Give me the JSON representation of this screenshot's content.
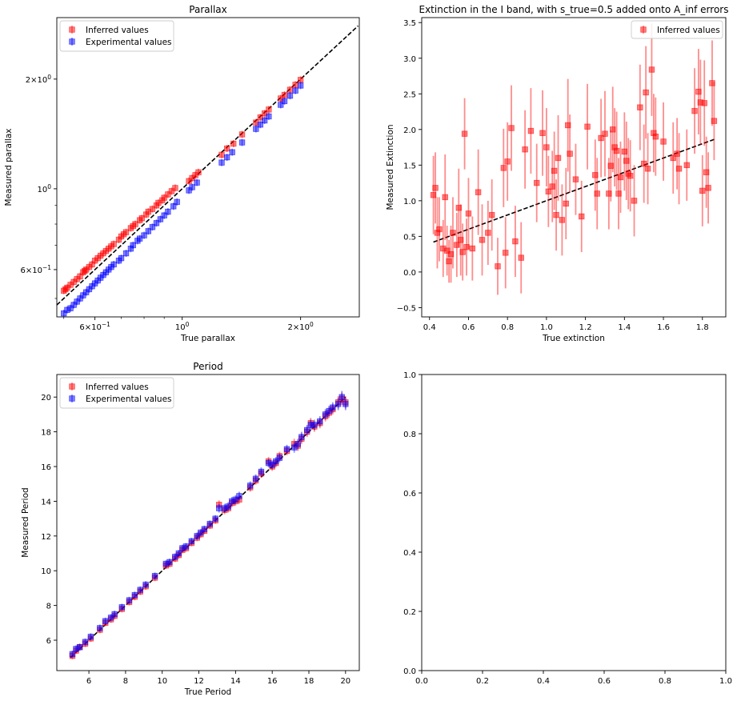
{
  "colors": {
    "inferred": "#ff0000",
    "experimental": "#0000ff",
    "fit": "#000000",
    "axes": "#000000"
  },
  "chart_data": [
    {
      "type": "scatter",
      "title": "Parallax",
      "xlabel": "True parallax",
      "ylabel": "Measured parallax",
      "xscale": "log",
      "yscale": "log",
      "xlim": [
        0.48,
        2.82
      ],
      "ylim": [
        0.445,
        2.95
      ],
      "xticks": [
        {
          "value": 0.6,
          "base": "6",
          "exp": "−1"
        },
        {
          "value": 1.0,
          "label": "10",
          "exp": "0"
        },
        {
          "value": 2.0,
          "base": "2",
          "exp": "0"
        }
      ],
      "yticks": [
        {
          "value": 0.6,
          "base": "6",
          "exp": "−1"
        },
        {
          "value": 1.0,
          "label": "10",
          "exp": "0"
        },
        {
          "value": 2.0,
          "base": "2",
          "exp": "0"
        }
      ],
      "legend": {
        "position": "upper-left",
        "entries": [
          "Inferred values",
          "Experimental values"
        ]
      },
      "reference_line": [
        [
          0.48,
          0.48
        ],
        [
          2.8,
          2.8
        ]
      ],
      "series": [
        {
          "name": "Inferred values",
          "color": "#ff0000",
          "x": [
            0.5,
            0.505,
            0.51,
            0.52,
            0.53,
            0.54,
            0.55,
            0.56,
            0.565,
            0.57,
            0.58,
            0.59,
            0.6,
            0.61,
            0.62,
            0.63,
            0.64,
            0.65,
            0.66,
            0.67,
            0.69,
            0.7,
            0.71,
            0.72,
            0.74,
            0.75,
            0.76,
            0.78,
            0.79,
            0.81,
            0.82,
            0.84,
            0.86,
            0.87,
            0.89,
            0.9,
            0.92,
            0.94,
            0.96,
            1.04,
            1.06,
            1.08,
            1.1,
            1.26,
            1.3,
            1.35,
            1.42,
            1.54,
            1.58,
            1.62,
            1.66,
            1.78,
            1.82,
            1.88,
            1.94,
            2.0
          ],
          "y": [
            0.525,
            0.53,
            0.535,
            0.545,
            0.555,
            0.565,
            0.575,
            0.59,
            0.595,
            0.6,
            0.61,
            0.62,
            0.635,
            0.645,
            0.655,
            0.665,
            0.675,
            0.685,
            0.695,
            0.705,
            0.725,
            0.74,
            0.75,
            0.76,
            0.78,
            0.79,
            0.8,
            0.82,
            0.83,
            0.85,
            0.865,
            0.88,
            0.9,
            0.915,
            0.93,
            0.945,
            0.965,
            0.985,
            1.005,
            1.05,
            1.07,
            1.09,
            1.11,
            1.24,
            1.29,
            1.33,
            1.41,
            1.52,
            1.57,
            1.61,
            1.65,
            1.77,
            1.81,
            1.87,
            1.93,
            1.99
          ]
        },
        {
          "name": "Experimental values",
          "color": "#0000ff",
          "x": [
            0.5,
            0.51,
            0.52,
            0.53,
            0.54,
            0.55,
            0.56,
            0.57,
            0.58,
            0.59,
            0.6,
            0.61,
            0.62,
            0.63,
            0.64,
            0.65,
            0.66,
            0.67,
            0.69,
            0.7,
            0.72,
            0.74,
            0.75,
            0.77,
            0.78,
            0.8,
            0.82,
            0.84,
            0.86,
            0.88,
            0.9,
            0.92,
            0.95,
            0.97,
            1.04,
            1.06,
            1.09,
            1.26,
            1.3,
            1.34,
            1.42,
            1.54,
            1.58,
            1.62,
            1.66,
            1.78,
            1.82,
            1.88,
            1.94,
            2.0
          ],
          "y": [
            0.455,
            0.465,
            0.47,
            0.48,
            0.49,
            0.5,
            0.51,
            0.52,
            0.53,
            0.54,
            0.55,
            0.56,
            0.57,
            0.58,
            0.59,
            0.6,
            0.61,
            0.62,
            0.635,
            0.645,
            0.665,
            0.685,
            0.7,
            0.72,
            0.73,
            0.745,
            0.765,
            0.785,
            0.805,
            0.825,
            0.845,
            0.865,
            0.895,
            0.92,
            0.99,
            1.01,
            1.04,
            1.18,
            1.22,
            1.26,
            1.34,
            1.46,
            1.5,
            1.54,
            1.58,
            1.7,
            1.74,
            1.8,
            1.86,
            1.92
          ]
        }
      ]
    },
    {
      "type": "scatter",
      "title": "Extinction in the I band, with s_true=0.5 added onto A_inf errors",
      "xlabel": "True extinction",
      "ylabel": "Measured Extinction",
      "xlim": [
        0.36,
        1.92
      ],
      "ylim": [
        -0.63,
        3.57
      ],
      "xticks": [
        0.4,
        0.6,
        0.8,
        1.0,
        1.2,
        1.4,
        1.6,
        1.8
      ],
      "yticks": [
        -0.5,
        0.0,
        0.5,
        1.0,
        1.5,
        2.0,
        2.5,
        3.0,
        3.5
      ],
      "legend": {
        "position": "upper-right",
        "entries": [
          "Inferred values"
        ]
      },
      "reference_line": [
        [
          0.42,
          0.42
        ],
        [
          1.86,
          1.86
        ]
      ],
      "series": [
        {
          "name": "Inferred values",
          "color": "#ff0000",
          "x": [
            0.42,
            0.43,
            0.44,
            0.45,
            0.47,
            0.48,
            0.49,
            0.5,
            0.51,
            0.52,
            0.54,
            0.55,
            0.56,
            0.57,
            0.58,
            0.59,
            0.6,
            0.62,
            0.65,
            0.67,
            0.7,
            0.72,
            0.75,
            0.78,
            0.79,
            0.8,
            0.82,
            0.84,
            0.87,
            0.89,
            0.92,
            0.95,
            0.98,
            1.0,
            1.01,
            1.03,
            1.04,
            1.05,
            1.06,
            1.08,
            1.1,
            1.11,
            1.12,
            1.15,
            1.18,
            1.21,
            1.25,
            1.26,
            1.28,
            1.3,
            1.32,
            1.33,
            1.34,
            1.35,
            1.36,
            1.37,
            1.38,
            1.4,
            1.41,
            1.42,
            1.43,
            1.45,
            1.48,
            1.5,
            1.51,
            1.52,
            1.54,
            1.55,
            1.56,
            1.6,
            1.65,
            1.67,
            1.68,
            1.72,
            1.76,
            1.78,
            1.79,
            1.8,
            1.81,
            1.82,
            1.83,
            1.85,
            1.86
          ],
          "y": [
            1.08,
            1.18,
            0.55,
            0.6,
            0.33,
            1.05,
            0.3,
            0.15,
            0.25,
            0.55,
            0.38,
            0.9,
            0.45,
            0.28,
            1.94,
            0.35,
            0.82,
            0.33,
            1.12,
            0.45,
            0.55,
            0.8,
            0.08,
            1.46,
            0.27,
            1.55,
            2.02,
            0.43,
            0.2,
            1.72,
            1.98,
            1.25,
            1.95,
            1.75,
            1.13,
            1.2,
            1.42,
            0.8,
            1.6,
            0.73,
            0.96,
            2.06,
            1.66,
            1.3,
            0.78,
            2.04,
            1.36,
            1.1,
            1.88,
            1.94,
            1.1,
            1.49,
            2.0,
            1.75,
            1.7,
            1.1,
            1.33,
            1.69,
            1.56,
            1.38,
            1.35,
            1.0,
            2.31,
            1.52,
            2.52,
            1.45,
            2.84,
            1.95,
            1.9,
            1.83,
            1.6,
            1.66,
            1.45,
            1.5,
            2.26,
            2.53,
            2.38,
            1.14,
            2.37,
            1.4,
            1.18,
            2.65,
            2.12
          ],
          "yerr": [
            0.55,
            0.5,
            0.5,
            0.45,
            0.4,
            0.6,
            0.35,
            0.3,
            0.4,
            0.5,
            0.45,
            0.55,
            0.5,
            0.4,
            0.5,
            0.4,
            0.5,
            0.45,
            0.6,
            0.5,
            0.45,
            0.5,
            0.4,
            0.55,
            0.5,
            0.55,
            0.6,
            0.5,
            0.5,
            0.55,
            0.6,
            0.55,
            0.6,
            0.55,
            0.5,
            0.5,
            0.55,
            0.5,
            0.6,
            0.5,
            0.5,
            0.65,
            0.55,
            0.5,
            0.5,
            0.6,
            0.5,
            0.5,
            0.55,
            0.6,
            0.5,
            0.5,
            0.6,
            0.55,
            0.55,
            0.5,
            0.5,
            0.55,
            0.55,
            0.5,
            0.5,
            0.5,
            0.6,
            0.55,
            0.65,
            0.5,
            0.65,
            0.55,
            0.55,
            0.55,
            0.5,
            0.5,
            0.5,
            0.5,
            0.6,
            0.6,
            0.6,
            0.5,
            0.6,
            0.5,
            0.5,
            0.6,
            0.55
          ]
        }
      ]
    },
    {
      "type": "scatter",
      "title": "Period",
      "xlabel": "True Period",
      "ylabel": "Measured Period",
      "xlim": [
        4.25,
        20.75
      ],
      "ylim": [
        4.25,
        21.3
      ],
      "xticks": [
        6,
        8,
        10,
        12,
        14,
        16,
        18,
        20
      ],
      "yticks": [
        6,
        8,
        10,
        12,
        14,
        16,
        18,
        20
      ],
      "legend": {
        "position": "upper-left",
        "entries": [
          "Inferred values",
          "Experimental values"
        ]
      },
      "reference_line": [
        [
          5.0,
          5.0
        ],
        [
          20.0,
          20.0
        ]
      ],
      "series": [
        {
          "name": "Inferred values",
          "color": "#ff0000",
          "x": [
            5.1,
            5.3,
            5.5,
            5.8,
            6.1,
            6.6,
            6.9,
            7.2,
            7.4,
            7.8,
            8.2,
            8.5,
            8.8,
            9.1,
            9.6,
            10.2,
            10.4,
            10.7,
            10.9,
            11.1,
            11.3,
            11.6,
            11.9,
            12.1,
            12.3,
            12.6,
            12.9,
            13.1,
            13.4,
            13.6,
            13.8,
            14.0,
            14.2,
            14.8,
            15.1,
            15.4,
            15.8,
            16.0,
            16.2,
            16.4,
            16.8,
            17.2,
            17.4,
            17.6,
            17.9,
            18.1,
            18.3,
            18.6,
            18.9,
            19.1,
            19.3,
            19.6,
            19.8,
            20.0
          ],
          "y": [
            5.1,
            5.4,
            5.6,
            5.8,
            6.1,
            6.6,
            7.0,
            7.2,
            7.4,
            7.8,
            8.2,
            8.5,
            8.8,
            9.1,
            9.6,
            10.3,
            10.4,
            10.7,
            10.9,
            11.2,
            11.3,
            11.6,
            11.9,
            12.1,
            12.3,
            12.6,
            12.9,
            13.8,
            13.5,
            13.6,
            13.9,
            14.0,
            14.1,
            14.8,
            15.2,
            15.6,
            16.3,
            16.0,
            16.2,
            16.6,
            16.9,
            17.3,
            17.2,
            17.6,
            18.0,
            18.5,
            18.3,
            18.5,
            18.9,
            19.1,
            19.3,
            19.7,
            19.9,
            19.7
          ],
          "yerr": [
            0.2,
            0.2,
            0.2,
            0.2,
            0.2,
            0.2,
            0.2,
            0.2,
            0.2,
            0.2,
            0.2,
            0.2,
            0.2,
            0.2,
            0.2,
            0.2,
            0.2,
            0.2,
            0.2,
            0.2,
            0.2,
            0.2,
            0.2,
            0.2,
            0.2,
            0.2,
            0.2,
            0.25,
            0.25,
            0.25,
            0.25,
            0.25,
            0.25,
            0.25,
            0.25,
            0.25,
            0.25,
            0.25,
            0.25,
            0.25,
            0.25,
            0.3,
            0.3,
            0.3,
            0.3,
            0.3,
            0.3,
            0.3,
            0.3,
            0.3,
            0.3,
            0.35,
            0.35,
            0.35
          ]
        },
        {
          "name": "Experimental values",
          "color": "#0000ff",
          "x": [
            5.1,
            5.3,
            5.5,
            5.8,
            6.1,
            6.6,
            6.9,
            7.2,
            7.4,
            7.8,
            8.2,
            8.5,
            8.8,
            9.1,
            9.6,
            10.2,
            10.4,
            10.7,
            10.9,
            11.1,
            11.3,
            11.6,
            11.9,
            12.1,
            12.3,
            12.6,
            12.9,
            13.1,
            13.4,
            13.6,
            13.8,
            14.0,
            14.2,
            14.8,
            15.1,
            15.4,
            15.8,
            16.0,
            16.2,
            16.4,
            16.8,
            17.2,
            17.4,
            17.6,
            17.9,
            18.1,
            18.3,
            18.6,
            18.9,
            19.1,
            19.3,
            19.6,
            19.8,
            20.0
          ],
          "y": [
            5.2,
            5.5,
            5.6,
            5.9,
            6.2,
            6.7,
            7.1,
            7.3,
            7.5,
            7.9,
            8.3,
            8.6,
            8.9,
            9.2,
            9.7,
            10.4,
            10.5,
            10.8,
            11.0,
            11.3,
            11.4,
            11.7,
            12.0,
            12.2,
            12.4,
            12.7,
            13.0,
            13.6,
            13.6,
            13.7,
            14.0,
            14.1,
            14.3,
            14.9,
            15.3,
            15.7,
            16.2,
            16.1,
            16.3,
            16.5,
            17.0,
            17.1,
            17.3,
            17.7,
            18.1,
            18.4,
            18.4,
            18.6,
            19.0,
            19.2,
            19.4,
            19.6,
            20.0,
            19.6
          ],
          "yerr": [
            0.2,
            0.2,
            0.2,
            0.2,
            0.2,
            0.2,
            0.2,
            0.2,
            0.2,
            0.2,
            0.2,
            0.2,
            0.2,
            0.2,
            0.2,
            0.2,
            0.2,
            0.2,
            0.2,
            0.2,
            0.2,
            0.2,
            0.2,
            0.2,
            0.2,
            0.2,
            0.2,
            0.25,
            0.25,
            0.25,
            0.25,
            0.25,
            0.25,
            0.25,
            0.25,
            0.25,
            0.25,
            0.25,
            0.25,
            0.25,
            0.25,
            0.3,
            0.3,
            0.3,
            0.3,
            0.3,
            0.3,
            0.3,
            0.3,
            0.3,
            0.3,
            0.35,
            0.35,
            0.35
          ]
        }
      ]
    },
    {
      "type": "scatter",
      "title": "",
      "xlabel": "",
      "ylabel": "",
      "xlim": [
        0.0,
        1.0
      ],
      "ylim": [
        0.0,
        1.0
      ],
      "xticks": [
        0.0,
        0.2,
        0.4,
        0.6,
        0.8,
        1.0
      ],
      "yticks": [
        0.0,
        0.2,
        0.4,
        0.6,
        0.8,
        1.0
      ],
      "series": []
    }
  ]
}
